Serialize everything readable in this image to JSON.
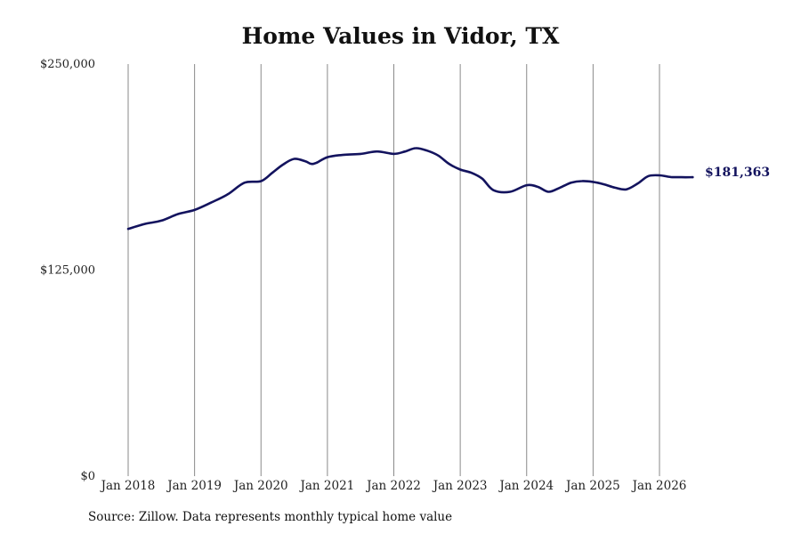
{
  "chart_data": {
    "type": "line",
    "title": "Home Values in Vidor, TX",
    "xlabel": "",
    "ylabel": "",
    "ylim": [
      0,
      250000
    ],
    "yticks": [
      {
        "value": 0,
        "label": "$0"
      },
      {
        "value": 125000,
        "label": "$125,000"
      },
      {
        "value": 250000,
        "label": "$250,000"
      }
    ],
    "xticks": [
      {
        "value": 2018.0,
        "label": "Jan 2018"
      },
      {
        "value": 2019.0,
        "label": "Jan 2019"
      },
      {
        "value": 2020.0,
        "label": "Jan 2020"
      },
      {
        "value": 2021.0,
        "label": "Jan 2021"
      },
      {
        "value": 2022.0,
        "label": "Jan 2022"
      },
      {
        "value": 2023.0,
        "label": "Jan 2023"
      },
      {
        "value": 2024.0,
        "label": "Jan 2024"
      },
      {
        "value": 2025.0,
        "label": "Jan 2025"
      },
      {
        "value": 2026.0,
        "label": "Jan 2026"
      }
    ],
    "grid": "vertical",
    "colors": {
      "line": "#13135e",
      "grid": "#8a8a8a"
    },
    "series": [
      {
        "end_label": "$181,363",
        "x": [
          2018.0,
          2018.25,
          2018.5,
          2018.75,
          2019.0,
          2019.25,
          2019.5,
          2019.75,
          2020.0,
          2020.17,
          2020.33,
          2020.5,
          2020.67,
          2020.75,
          2020.83,
          2021.0,
          2021.25,
          2021.5,
          2021.75,
          2022.0,
          2022.17,
          2022.33,
          2022.5,
          2022.67,
          2022.83,
          2023.0,
          2023.17,
          2023.33,
          2023.5,
          2023.75,
          2024.0,
          2024.17,
          2024.33,
          2024.5,
          2024.67,
          2024.83,
          2025.0,
          2025.17,
          2025.33,
          2025.5,
          2025.67,
          2025.83,
          2026.0,
          2026.17,
          2026.33,
          2026.5
        ],
        "y": [
          150000,
          153000,
          155000,
          159000,
          161500,
          166000,
          171000,
          178000,
          179000,
          184000,
          189000,
          192500,
          191000,
          189500,
          190000,
          193500,
          195000,
          195500,
          197000,
          195500,
          197000,
          199000,
          197500,
          194500,
          189500,
          186000,
          184000,
          180500,
          173500,
          172500,
          176500,
          175500,
          172500,
          175000,
          178000,
          179000,
          178500,
          177000,
          175000,
          174000,
          177500,
          182000,
          182500,
          181500,
          181363,
          181363
        ]
      }
    ]
  },
  "source_note": "Source: Zillow. Data represents monthly typical home value"
}
